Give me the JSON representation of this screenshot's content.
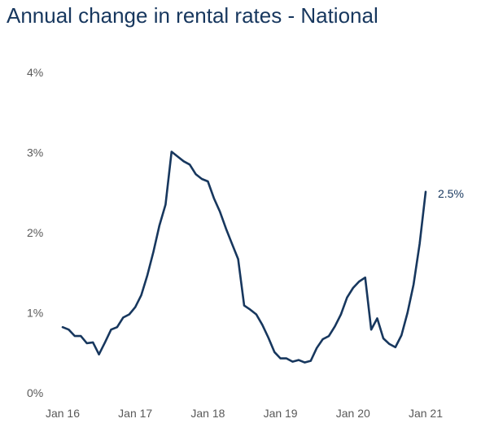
{
  "chart_data": {
    "type": "line",
    "title": "Annual change in rental rates - National",
    "xlabel": "",
    "ylabel": "",
    "ylim": [
      0,
      4
    ],
    "grid": false,
    "y_ticks": [
      "0%",
      "1%",
      "2%",
      "3%",
      "4%"
    ],
    "x_ticks": [
      "Jan 16",
      "Jan 17",
      "Jan 18",
      "Jan 19",
      "Jan 20",
      "Jan 21"
    ],
    "end_label": "2.5%",
    "line_color": "#17375e",
    "series": [
      {
        "values": [
          0.82,
          0.79,
          0.71,
          0.71,
          0.62,
          0.63,
          0.48,
          0.63,
          0.79,
          0.82,
          0.94,
          0.98,
          1.07,
          1.22,
          1.47,
          1.76,
          2.09,
          2.35,
          3.01,
          2.95,
          2.89,
          2.85,
          2.73,
          2.67,
          2.64,
          2.43,
          2.26,
          2.05,
          1.86,
          1.67,
          1.09,
          1.04,
          0.98,
          0.85,
          0.69,
          0.51,
          0.43,
          0.43,
          0.39,
          0.41,
          0.38,
          0.4,
          0.56,
          0.67,
          0.71,
          0.83,
          0.98,
          1.19,
          1.31,
          1.39,
          1.44,
          0.79,
          0.93,
          0.68,
          0.61,
          0.57,
          0.72,
          1.0,
          1.35,
          1.86,
          2.51
        ]
      }
    ]
  }
}
